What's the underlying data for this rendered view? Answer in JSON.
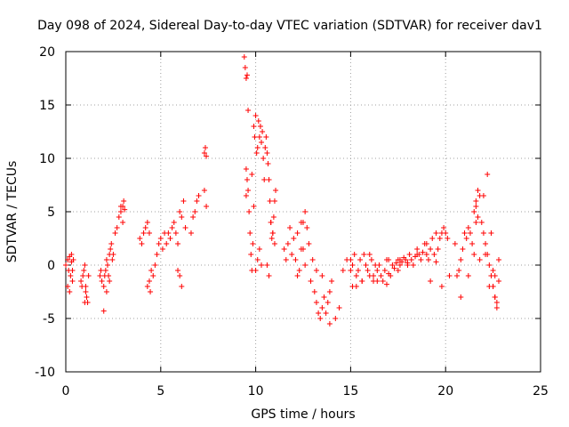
{
  "chart_data": {
    "type": "scatter",
    "title": "Day 098 of 2024, Sidereal Day-to-day VTEC variation (SDTVAR) for receiver dav1",
    "xlabel": "GPS time / hours",
    "ylabel": "SDTVAR / TECUs",
    "xlim": [
      0,
      25
    ],
    "ylim": [
      -10,
      20
    ],
    "xticks": [
      "0",
      "5",
      "10",
      "15",
      "20",
      "25"
    ],
    "yticks": [
      "-10",
      "-5",
      "0",
      "5",
      "10",
      "15",
      "20"
    ],
    "grid": true,
    "marker": "+",
    "color": "#ff0000",
    "series": [
      {
        "name": "SDTVAR",
        "x": [
          0.0,
          0.1,
          0.15,
          0.2,
          0.25,
          0.3,
          0.35,
          0.4,
          0.1,
          0.2,
          0.3,
          0.35,
          0.8,
          0.85,
          0.9,
          0.95,
          1.0,
          1.05,
          1.1,
          1.15,
          1.2,
          1.0,
          1.05,
          1.8,
          1.85,
          1.9,
          2.0,
          2.05,
          2.1,
          2.15,
          2.2,
          2.25,
          2.3,
          2.35,
          2.4,
          2.45,
          2.5,
          2.0,
          2.15,
          2.3,
          2.6,
          2.7,
          2.8,
          2.9,
          3.0,
          3.05,
          3.1,
          2.9,
          3.0,
          3.9,
          4.0,
          4.1,
          4.2,
          4.3,
          4.4,
          4.5,
          4.4,
          4.3,
          4.45,
          4.6,
          4.7,
          4.8,
          4.9,
          5.0,
          5.1,
          5.2,
          5.3,
          5.4,
          5.5,
          5.6,
          5.7,
          5.8,
          5.9,
          6.0,
          6.1,
          6.2,
          6.3,
          5.9,
          6.0,
          6.1,
          6.6,
          6.7,
          6.8,
          6.9,
          7.0,
          7.3,
          7.35,
          7.4,
          7.3,
          7.4,
          9.4,
          9.45,
          9.5,
          9.55,
          9.6,
          9.5,
          9.55,
          9.5,
          9.6,
          9.65,
          9.7,
          9.75,
          9.8,
          9.85,
          9.9,
          9.95,
          10.0,
          10.05,
          10.1,
          10.15,
          10.2,
          10.25,
          10.3,
          10.35,
          10.4,
          10.45,
          10.5,
          10.55,
          10.6,
          10.65,
          10.7,
          10.75,
          10.8,
          10.85,
          10.9,
          10.95,
          11.0,
          11.05,
          10.0,
          10.1,
          9.8,
          9.9,
          10.2,
          10.3,
          10.6,
          10.7,
          10.8,
          10.9,
          11.0,
          11.5,
          11.6,
          11.7,
          11.8,
          11.9,
          12.0,
          12.1,
          12.2,
          12.3,
          12.4,
          12.5,
          12.6,
          12.7,
          12.8,
          12.2,
          12.4,
          12.6,
          12.5,
          12.9,
          13.0,
          13.1,
          13.2,
          13.3,
          13.4,
          13.5,
          13.6,
          13.7,
          13.8,
          13.9,
          14.0,
          13.2,
          13.5,
          13.9,
          14.2,
          14.4,
          14.6,
          14.8,
          15.0,
          15.1,
          15.2,
          15.3,
          15.4,
          15.5,
          15.6,
          15.7,
          15.8,
          15.9,
          16.0,
          16.1,
          16.2,
          16.3,
          16.4,
          16.5,
          16.6,
          16.7,
          16.8,
          16.9,
          17.0,
          17.1,
          17.2,
          17.3,
          17.4,
          17.5,
          17.6,
          17.7,
          17.8,
          17.9,
          18.0,
          18.1,
          18.2,
          18.3,
          18.4,
          18.5,
          18.6,
          18.7,
          18.8,
          18.9,
          19.0,
          19.1,
          19.2,
          19.3,
          19.4,
          19.5,
          19.6,
          19.7,
          19.8,
          19.9,
          20.0,
          20.1,
          20.2,
          15.0,
          15.3,
          16.0,
          16.4,
          17.0,
          17.5,
          18.0,
          18.5,
          19.0,
          19.5,
          15.1,
          15.6,
          16.2,
          16.9,
          17.6,
          19.2,
          19.8,
          20.5,
          20.6,
          20.7,
          20.8,
          20.9,
          21.0,
          21.1,
          21.2,
          21.3,
          21.4,
          21.5,
          21.6,
          21.7,
          21.8,
          21.9,
          22.0,
          22.1,
          22.2,
          22.3,
          22.4,
          22.5,
          22.6,
          22.7,
          22.8,
          21.5,
          21.6,
          21.7,
          22.0,
          22.2,
          22.4,
          22.5,
          22.6,
          22.7,
          22.8,
          20.8,
          21.2,
          21.8,
          22.3,
          22.5,
          21.6,
          22.1,
          22.6
        ],
        "y": [
          0.0,
          0.5,
          -0.5,
          0.8,
          -1.0,
          0.3,
          -1.5,
          0.5,
          -2.0,
          -2.5,
          1.0,
          -0.5,
          -1.5,
          -2.0,
          -1.0,
          -0.5,
          0.0,
          -2.5,
          -3.0,
          -3.5,
          -1.0,
          -3.5,
          -2.0,
          -1.0,
          -0.5,
          -1.5,
          -2.0,
          -1.0,
          -0.5,
          0.5,
          0.0,
          -1.0,
          1.0,
          1.5,
          2.0,
          0.5,
          1.0,
          -4.3,
          -2.5,
          -1.5,
          3.0,
          3.5,
          4.5,
          5.0,
          5.5,
          6.0,
          5.2,
          5.5,
          4.0,
          2.5,
          2.0,
          3.0,
          3.5,
          4.0,
          3.0,
          -0.5,
          -1.5,
          -2.0,
          -2.5,
          -1.0,
          0.0,
          1.0,
          2.0,
          2.5,
          1.5,
          3.0,
          2.0,
          3.0,
          2.5,
          3.5,
          4.0,
          3.0,
          2.0,
          5.0,
          4.5,
          6.0,
          3.5,
          -0.5,
          -1.0,
          -2.0,
          3.0,
          4.5,
          5.0,
          6.0,
          6.5,
          10.5,
          11.0,
          10.2,
          7.0,
          5.5,
          19.5,
          18.5,
          17.5,
          17.8,
          14.5,
          9.0,
          8.0,
          6.5,
          7.0,
          5.0,
          3.0,
          1.0,
          -0.5,
          2.0,
          13.0,
          12.0,
          14.0,
          10.5,
          11.0,
          13.5,
          12.0,
          13.0,
          11.5,
          12.5,
          10.0,
          8.0,
          11.0,
          12.0,
          10.5,
          9.5,
          8.0,
          6.0,
          4.0,
          2.5,
          3.0,
          4.5,
          6.0,
          7.0,
          -0.5,
          0.5,
          8.5,
          5.5,
          1.5,
          0.0,
          0.0,
          -1.0,
          4.0,
          3.0,
          2.0,
          1.5,
          0.5,
          2.0,
          3.5,
          1.0,
          2.5,
          0.5,
          -1.0,
          -0.5,
          1.5,
          4.0,
          5.0,
          3.5,
          2.0,
          3.0,
          4.0,
          0.0,
          1.5,
          -1.5,
          0.5,
          -2.5,
          -3.5,
          -4.5,
          -5.0,
          -4.0,
          -3.0,
          -4.5,
          -3.5,
          -2.5,
          -1.5,
          -0.5,
          -1.0,
          -5.5,
          -5.0,
          -4.0,
          -0.5,
          0.5,
          -0.5,
          0.0,
          1.0,
          -1.0,
          -0.5,
          0.5,
          -1.5,
          1.0,
          0.0,
          -0.5,
          -1.0,
          0.5,
          -1.5,
          0.0,
          -0.5,
          0.0,
          -1.0,
          -1.5,
          -0.5,
          0.5,
          -0.8,
          -1.0,
          0.0,
          -0.3,
          0.2,
          0.5,
          0.0,
          0.3,
          0.7,
          0.5,
          0.2,
          1.0,
          0.5,
          0.0,
          0.8,
          1.5,
          1.0,
          0.5,
          1.2,
          2.0,
          1.0,
          0.5,
          1.5,
          2.5,
          1.0,
          0.3,
          1.5,
          2.5,
          3.0,
          3.5,
          3.0,
          2.5,
          -1.0,
          0.5,
          -2.0,
          1.0,
          -1.5,
          0.5,
          -0.5,
          0.0,
          1.0,
          2.0,
          3.0,
          -2.0,
          -1.5,
          -1.0,
          -1.8,
          0.5,
          -1.5,
          -2.0,
          2.0,
          -1.0,
          -0.5,
          0.5,
          1.5,
          3.0,
          2.5,
          3.5,
          3.0,
          2.0,
          5.0,
          6.0,
          7.0,
          6.5,
          4.0,
          3.0,
          2.0,
          1.0,
          0.0,
          -1.0,
          -2.0,
          -3.0,
          -3.5,
          -1.5,
          1.0,
          4.0,
          4.5,
          6.5,
          8.5,
          3.0,
          -2.0,
          -3.0,
          -4.0,
          0.5,
          -3.0,
          -1.0,
          0.5,
          -2.0,
          -0.5,
          5.5,
          1.0,
          -1.0
        ]
      }
    ]
  }
}
